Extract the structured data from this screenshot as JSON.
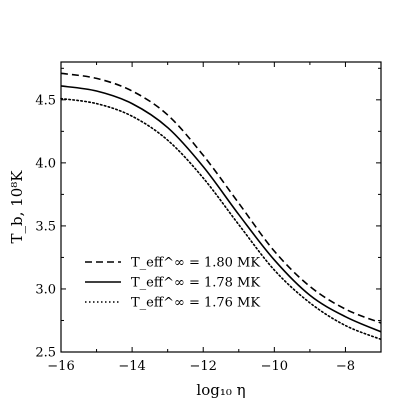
{
  "chart_data": {
    "type": "line",
    "xlabel": "log₁₀ η",
    "ylabel": "T_b, 10⁸K",
    "xlim": [
      -16,
      -7
    ],
    "ylim": [
      2.5,
      4.8
    ],
    "xticks": [
      -16,
      -14,
      -12,
      -10,
      -8
    ],
    "xtick_labels": [
      "−16",
      "−14",
      "−12",
      "−10",
      "−8"
    ],
    "yticks": [
      2.5,
      3.0,
      3.5,
      4.0,
      4.5
    ],
    "ytick_labels": [
      "2.5",
      "3.0",
      "3.5",
      "4.0",
      "4.5"
    ],
    "grid": false,
    "legend_position": "lower-left",
    "x": [
      -16,
      -15,
      -14,
      -13,
      -12,
      -11,
      -10,
      -9,
      -8,
      -7
    ],
    "series": [
      {
        "name": "T_eff^∞ = 1.80 MK",
        "style": "dashed",
        "color": "#000000",
        "values": [
          4.71,
          4.67,
          4.57,
          4.38,
          4.06,
          3.68,
          3.3,
          3.02,
          2.84,
          2.73
        ]
      },
      {
        "name": "T_eff^∞ = 1.78 MK",
        "style": "solid",
        "color": "#000000",
        "values": [
          4.61,
          4.57,
          4.47,
          4.28,
          3.97,
          3.59,
          3.23,
          2.95,
          2.78,
          2.66
        ]
      },
      {
        "name": "T_eff^∞ = 1.76 MK",
        "style": "dotted",
        "color": "#000000",
        "values": [
          4.51,
          4.47,
          4.37,
          4.18,
          3.88,
          3.51,
          3.15,
          2.89,
          2.71,
          2.6
        ]
      }
    ]
  }
}
